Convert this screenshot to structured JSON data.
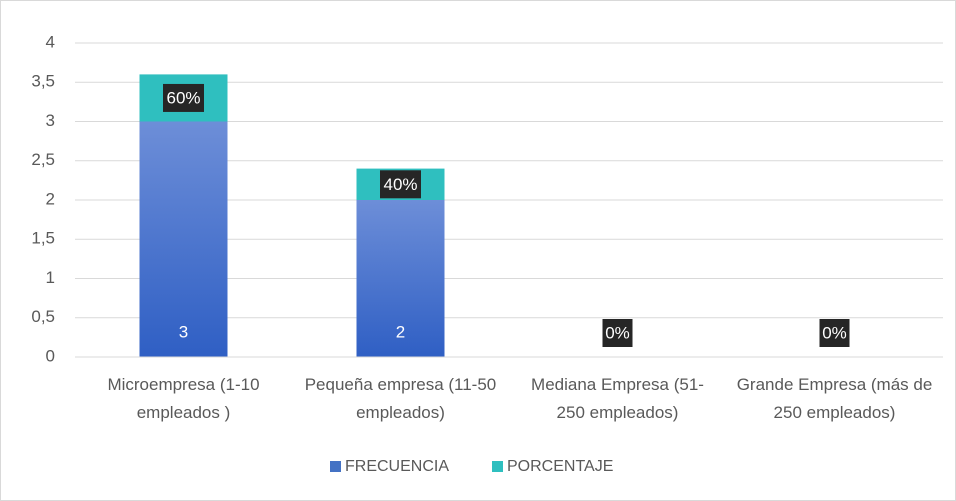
{
  "chart_data": {
    "type": "stacked_bar",
    "categories": [
      "Microempresa (1-10 empleados )",
      "Pequeña empresa (11-50 empleados)",
      "Mediana Empresa (51-250 empleados)",
      "Grande Empresa (más de 250 empleados)"
    ],
    "series": [
      {
        "name": "FRECUENCIA",
        "color": "#4472c4",
        "values": [
          3,
          2,
          0,
          0
        ],
        "value_labels": [
          "3",
          "2",
          null,
          null
        ]
      },
      {
        "name": "PORCENTAJE",
        "color": "#2fbfbf",
        "values": [
          0.6,
          0.4,
          0,
          0
        ],
        "value_labels": [
          "60%",
          "40%",
          "0%",
          "0%"
        ]
      }
    ],
    "ylim": [
      0,
      4
    ],
    "yticks": [
      0,
      {
        "value": 0.5,
        "label": "0,5"
      },
      1,
      {
        "value": 1.5,
        "label": "1,5"
      },
      2,
      {
        "value": 2.5,
        "label": "2,5"
      },
      3,
      {
        "value": 3.5,
        "label": "3,5"
      },
      4
    ],
    "grid": true,
    "legend": "bottom"
  }
}
